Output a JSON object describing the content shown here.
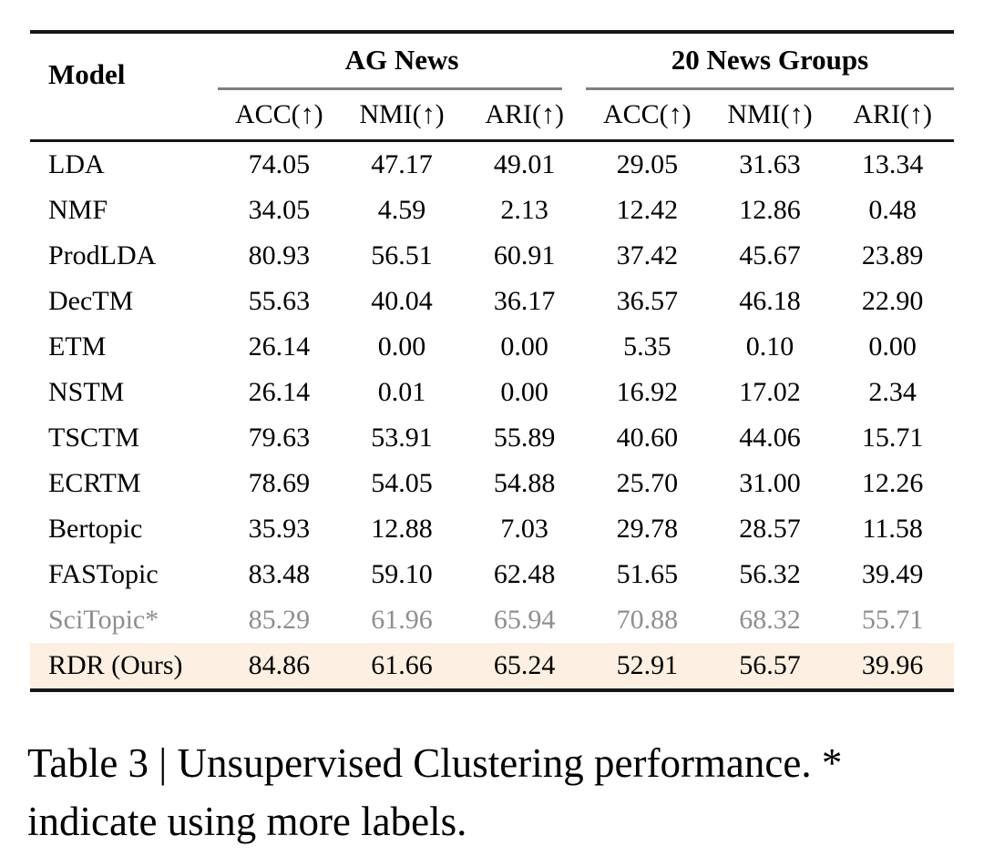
{
  "table": {
    "model_header": "Model",
    "groups": [
      {
        "label": "AG News",
        "columns": [
          "ACC(↑)",
          "NMI(↑)",
          "ARI(↑)"
        ]
      },
      {
        "label": "20 News Groups",
        "columns": [
          "ACC(↑)",
          "NMI(↑)",
          "ARI(↑)"
        ]
      }
    ],
    "rows": [
      {
        "model": "LDA",
        "style": "normal",
        "values": [
          "74.05",
          "47.17",
          "49.01",
          "29.05",
          "31.63",
          "13.34"
        ]
      },
      {
        "model": "NMF",
        "style": "normal",
        "values": [
          "34.05",
          "4.59",
          "2.13",
          "12.42",
          "12.86",
          "0.48"
        ]
      },
      {
        "model": "ProdLDA",
        "style": "normal",
        "values": [
          "80.93",
          "56.51",
          "60.91",
          "37.42",
          "45.67",
          "23.89"
        ]
      },
      {
        "model": "DecTM",
        "style": "normal",
        "values": [
          "55.63",
          "40.04",
          "36.17",
          "36.57",
          "46.18",
          "22.90"
        ]
      },
      {
        "model": "ETM",
        "style": "normal",
        "values": [
          "26.14",
          "0.00",
          "0.00",
          "5.35",
          "0.10",
          "0.00"
        ]
      },
      {
        "model": "NSTM",
        "style": "normal",
        "values": [
          "26.14",
          "0.01",
          "0.00",
          "16.92",
          "17.02",
          "2.34"
        ]
      },
      {
        "model": "TSCTM",
        "style": "normal",
        "values": [
          "79.63",
          "53.91",
          "55.89",
          "40.60",
          "44.06",
          "15.71"
        ]
      },
      {
        "model": "ECRTM",
        "style": "normal",
        "values": [
          "78.69",
          "54.05",
          "54.88",
          "25.70",
          "31.00",
          "12.26"
        ]
      },
      {
        "model": "Bertopic",
        "style": "normal",
        "values": [
          "35.93",
          "12.88",
          "7.03",
          "29.78",
          "28.57",
          "11.58"
        ]
      },
      {
        "model": "FASTopic",
        "style": "normal",
        "values": [
          "83.48",
          "59.10",
          "62.48",
          "51.65",
          "56.32",
          "39.49"
        ]
      },
      {
        "model": "SciTopic*",
        "style": "muted",
        "values": [
          "85.29",
          "61.96",
          "65.94",
          "70.88",
          "68.32",
          "55.71"
        ]
      },
      {
        "model": "RDR (Ours)",
        "style": "highlight",
        "values": [
          "84.86",
          "61.66",
          "65.24",
          "52.91",
          "56.57",
          "39.96"
        ]
      }
    ]
  },
  "caption": {
    "line1": "Table 3 | Unsupervised Clustering performance. *",
    "line2": "indicate using more labels."
  },
  "colors": {
    "highlight_bg": "#fdefe1",
    "muted_text": "#8e8e8e",
    "rule_black": "#161616",
    "cmidrule_gray": "#7f7f7f"
  }
}
